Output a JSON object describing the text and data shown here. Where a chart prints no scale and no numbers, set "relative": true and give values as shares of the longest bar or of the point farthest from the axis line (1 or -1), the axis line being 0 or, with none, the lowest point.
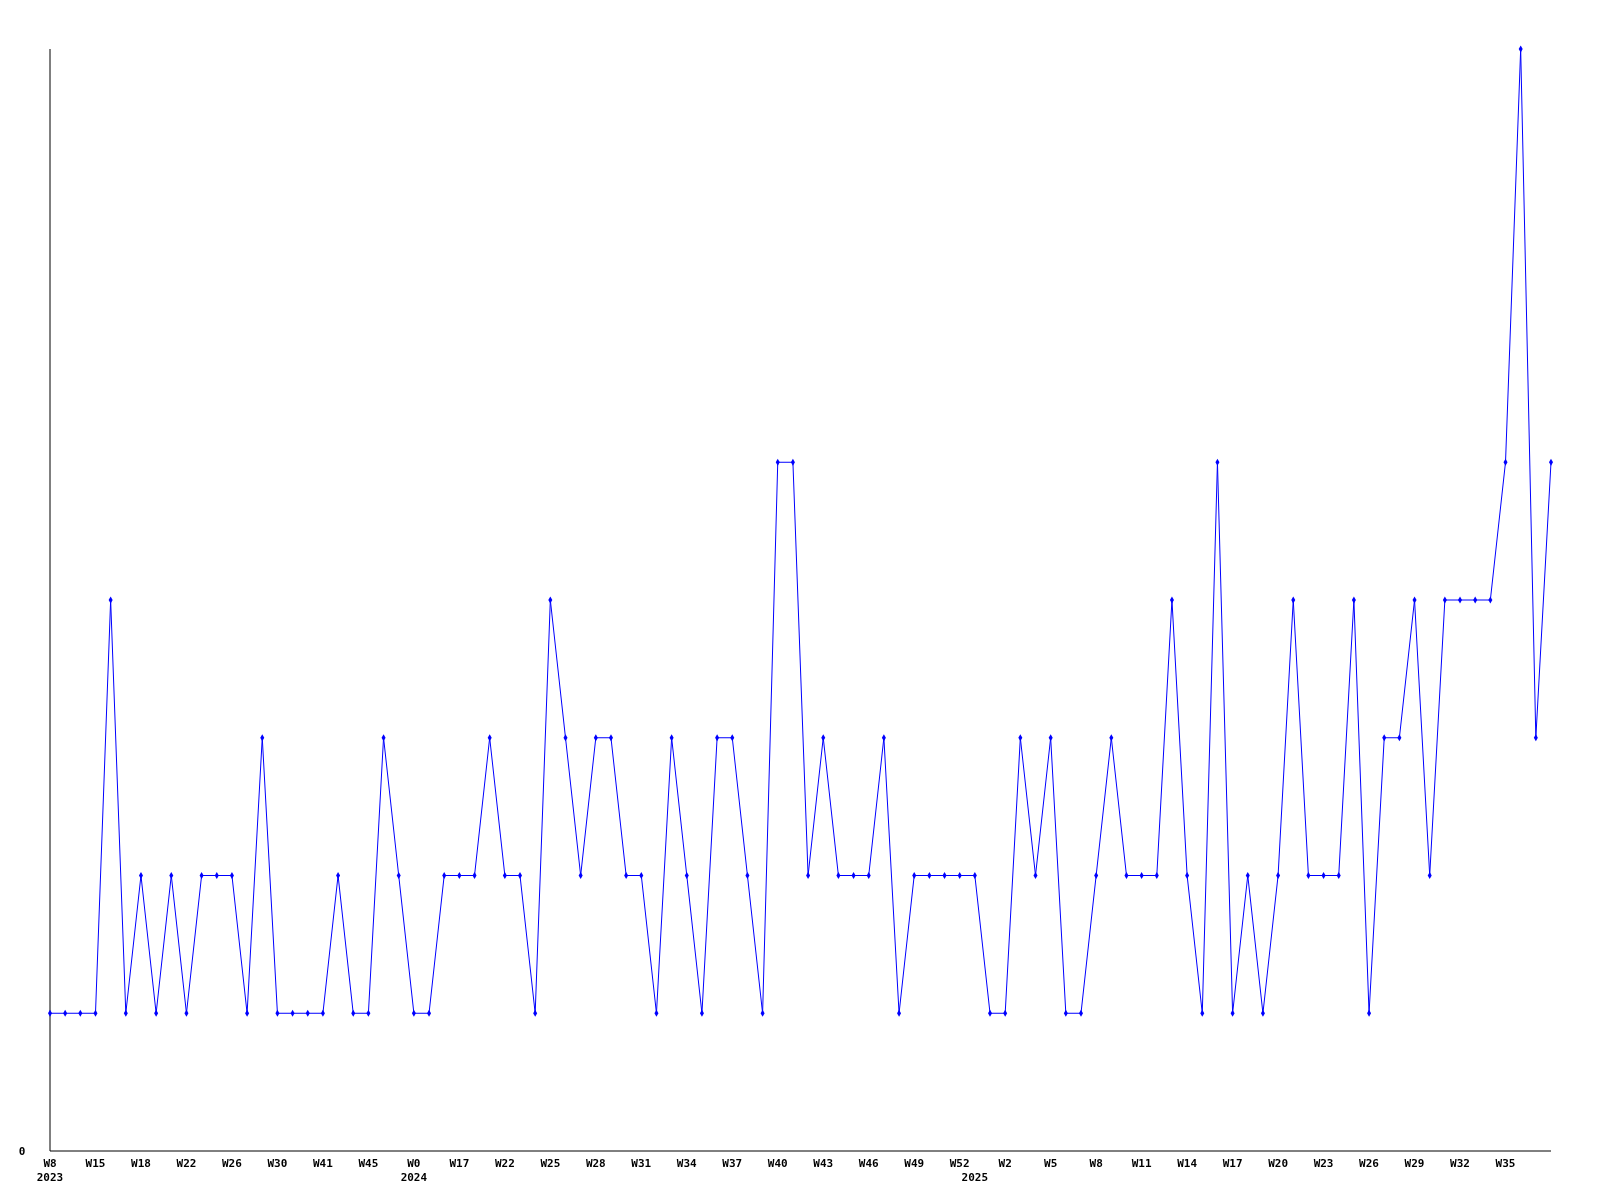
{
  "chart_data": {
    "type": "line",
    "relative": true,
    "annotations": [
      "0"
    ],
    "marker": "diamond",
    "line_style": "solid",
    "categories": [
      "W8\n2023",
      null,
      null,
      "W15",
      null,
      null,
      "W18",
      null,
      null,
      "W22",
      null,
      null,
      "W26",
      null,
      null,
      "W30",
      null,
      null,
      "W41",
      null,
      null,
      "W45",
      null,
      null,
      "W0\n2024",
      null,
      null,
      "W17",
      null,
      null,
      "W22",
      null,
      null,
      "W25",
      null,
      null,
      "W28",
      null,
      null,
      "W31",
      null,
      null,
      "W34",
      null,
      null,
      "W37",
      null,
      null,
      "W40",
      null,
      null,
      "W43",
      null,
      null,
      "W46",
      null,
      null,
      "W49",
      null,
      null,
      "W52",
      "\n2025",
      null,
      "W2",
      null,
      null,
      "W5",
      null,
      null,
      "W8",
      null,
      null,
      "W11",
      null,
      null,
      "W14",
      null,
      null,
      "W17",
      null,
      null,
      "W20",
      null,
      null,
      "W23",
      null,
      null,
      "W26",
      null,
      null,
      "W29",
      null,
      null,
      "W32",
      null,
      null,
      "W35",
      null,
      null,
      null
    ],
    "series": [
      {
        "color": "#0000ff",
        "values": [
          0.125,
          0.125,
          0.125,
          0.125,
          0.5,
          0.125,
          0.25,
          0.125,
          0.25,
          0.125,
          0.25,
          0.25,
          0.25,
          0.125,
          0.375,
          0.125,
          0.125,
          0.125,
          0.125,
          0.25,
          0.125,
          0.125,
          0.375,
          0.25,
          0.125,
          0.125,
          0.25,
          0.25,
          0.25,
          0.375,
          0.25,
          0.25,
          0.125,
          0.5,
          0.375,
          0.25,
          0.375,
          0.375,
          0.25,
          0.25,
          0.125,
          0.375,
          0.25,
          0.125,
          0.375,
          0.375,
          0.25,
          0.125,
          0.625,
          0.625,
          0.25,
          0.375,
          0.25,
          0.25,
          0.25,
          0.375,
          0.125,
          0.25,
          0.25,
          0.25,
          0.25,
          0.25,
          0.125,
          0.125,
          0.375,
          0.25,
          0.375,
          0.125,
          0.125,
          0.25,
          0.375,
          0.25,
          0.25,
          0.25,
          0.5,
          0.25,
          0.125,
          0.625,
          0.125,
          0.25,
          0.125,
          0.25,
          0.5,
          0.25,
          0.25,
          0.25,
          0.5,
          0.125,
          0.375,
          0.375,
          0.5,
          0.25,
          0.5,
          0.5,
          0.5,
          0.5,
          0.625,
          1,
          0.375,
          0.625
        ]
      }
    ]
  }
}
